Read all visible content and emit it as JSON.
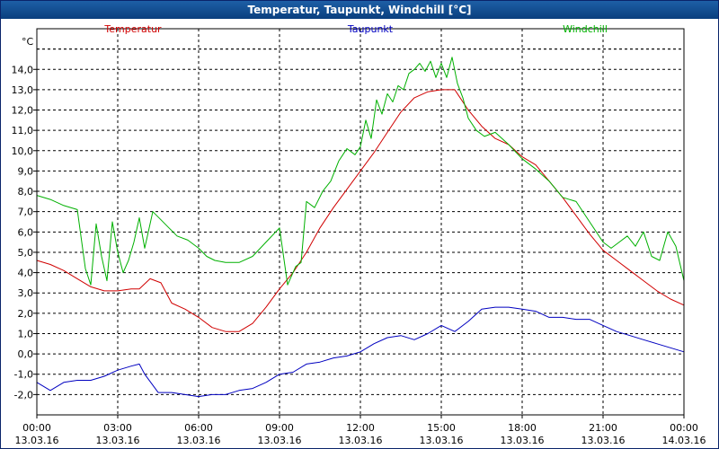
{
  "window": {
    "title": "Temperatur, Taupunkt, Windchill [°C]"
  },
  "colors": {
    "temperatur": "#d00000",
    "taupunkt": "#0000c0",
    "windchill": "#00b000",
    "grid": "#000000",
    "titlebar": "#0a4a8c"
  },
  "chart_data": {
    "type": "line",
    "title": "Temperatur, Taupunkt, Windchill [°C]",
    "ylabel": "°C",
    "xlabel": "",
    "ylim": [
      -3,
      16
    ],
    "xlim": [
      0,
      24
    ],
    "grid": true,
    "legend_position": "top",
    "yticks": [
      {
        "value": 14,
        "label": "14,0"
      },
      {
        "value": 13,
        "label": "13,0"
      },
      {
        "value": 12,
        "label": "12,0"
      },
      {
        "value": 11,
        "label": "11,0"
      },
      {
        "value": 10,
        "label": "10,0"
      },
      {
        "value": 9,
        "label": "9,0"
      },
      {
        "value": 8,
        "label": "8,0"
      },
      {
        "value": 7,
        "label": "7,0"
      },
      {
        "value": 6,
        "label": "6,0"
      },
      {
        "value": 5,
        "label": "5,0"
      },
      {
        "value": 4,
        "label": "4,0"
      },
      {
        "value": 3,
        "label": "3,0"
      },
      {
        "value": 2,
        "label": "2,0"
      },
      {
        "value": 1,
        "label": "1,0"
      },
      {
        "value": 0,
        "label": "0,0"
      },
      {
        "value": -1,
        "label": "-1,0"
      },
      {
        "value": -2,
        "label": "-2,0"
      }
    ],
    "xticks": [
      {
        "value": 0,
        "time": "00:00",
        "date": "13.03.16"
      },
      {
        "value": 3,
        "time": "03:00",
        "date": "13.03.16"
      },
      {
        "value": 6,
        "time": "06:00",
        "date": "13.03.16"
      },
      {
        "value": 9,
        "time": "09:00",
        "date": "13.03.16"
      },
      {
        "value": 12,
        "time": "12:00",
        "date": "13.03.16"
      },
      {
        "value": 15,
        "time": "15:00",
        "date": "13.03.16"
      },
      {
        "value": 18,
        "time": "18:00",
        "date": "13.03.16"
      },
      {
        "value": 21,
        "time": "21:00",
        "date": "13.03.16"
      },
      {
        "value": 24,
        "time": "00:00",
        "date": "14.03.16"
      }
    ],
    "series": [
      {
        "name": "Temperatur",
        "color": "#d00000",
        "x": [
          0,
          0.5,
          1,
          1.5,
          2,
          2.5,
          3,
          3.5,
          3.8,
          4.2,
          4.6,
          5,
          5.5,
          6,
          6.5,
          7,
          7.5,
          8,
          8.5,
          9,
          9.5,
          10,
          10.5,
          11,
          11.5,
          12,
          12.5,
          13,
          13.5,
          14,
          14.5,
          15,
          15.5,
          16,
          16.5,
          17,
          17.5,
          18,
          18.5,
          19,
          19.5,
          20,
          20.5,
          21,
          21.5,
          22,
          22.5,
          23,
          23.5,
          24
        ],
        "values": [
          4.6,
          4.4,
          4.1,
          3.7,
          3.3,
          3.1,
          3.1,
          3.2,
          3.2,
          3.7,
          3.5,
          2.5,
          2.2,
          1.8,
          1.3,
          1.1,
          1.1,
          1.5,
          2.3,
          3.2,
          4.0,
          5.0,
          6.2,
          7.2,
          8.1,
          9.0,
          9.9,
          10.9,
          11.9,
          12.6,
          12.9,
          13.0,
          13.0,
          12.0,
          11.2,
          10.6,
          10.3,
          9.7,
          9.3,
          8.5,
          7.7,
          6.8,
          5.9,
          5.1,
          4.6,
          4.1,
          3.6,
          3.1,
          2.7,
          2.4
        ]
      },
      {
        "name": "Taupunkt",
        "color": "#0000c0",
        "x": [
          0,
          0.5,
          1,
          1.5,
          2,
          2.5,
          3,
          3.5,
          3.8,
          4,
          4.5,
          5,
          5.5,
          6,
          6.5,
          7,
          7.5,
          8,
          8.5,
          9,
          9.5,
          10,
          10.5,
          11,
          11.5,
          12,
          12.5,
          13,
          13.5,
          14,
          14.5,
          15,
          15.5,
          16,
          16.5,
          17,
          17.5,
          18,
          18.5,
          19,
          19.5,
          20,
          20.5,
          21,
          21.5,
          22,
          22.5,
          23,
          23.5,
          24
        ],
        "values": [
          -1.4,
          -1.8,
          -1.4,
          -1.3,
          -1.3,
          -1.1,
          -0.8,
          -0.6,
          -0.5,
          -1.0,
          -1.9,
          -1.9,
          -2.0,
          -2.1,
          -2.0,
          -2.0,
          -1.8,
          -1.7,
          -1.4,
          -1.0,
          -0.9,
          -0.5,
          -0.4,
          -0.2,
          -0.1,
          0.1,
          0.5,
          0.8,
          0.9,
          0.7,
          1.0,
          1.4,
          1.1,
          1.6,
          2.2,
          2.3,
          2.3,
          2.2,
          2.1,
          1.8,
          1.8,
          1.7,
          1.7,
          1.4,
          1.1,
          0.9,
          0.7,
          0.5,
          0.3,
          0.1
        ]
      },
      {
        "name": "Windchill",
        "color": "#00b000",
        "x": [
          0,
          0.5,
          1,
          1.5,
          1.8,
          2,
          2.2,
          2.4,
          2.6,
          2.8,
          3,
          3.2,
          3.4,
          3.6,
          3.8,
          4,
          4.3,
          4.6,
          4.9,
          5.2,
          5.6,
          6,
          6.3,
          6.6,
          7,
          7.5,
          8,
          8.5,
          9,
          9.3,
          9.6,
          9.8,
          10,
          10.3,
          10.6,
          10.9,
          11.2,
          11.5,
          11.8,
          12,
          12.2,
          12.4,
          12.6,
          12.8,
          13,
          13.2,
          13.4,
          13.6,
          13.8,
          14,
          14.2,
          14.4,
          14.6,
          14.8,
          15,
          15.2,
          15.4,
          15.6,
          15.8,
          16,
          16.3,
          16.6,
          17,
          17.5,
          18,
          18.5,
          19,
          19.5,
          20,
          20.5,
          21,
          21.3,
          21.6,
          21.9,
          22.2,
          22.5,
          22.8,
          23.1,
          23.4,
          23.7,
          24
        ],
        "values": [
          7.8,
          7.6,
          7.3,
          7.1,
          4.2,
          3.4,
          6.4,
          4.8,
          3.6,
          6.5,
          5.0,
          4.0,
          4.6,
          5.5,
          6.7,
          5.2,
          7.0,
          6.6,
          6.2,
          5.8,
          5.6,
          5.2,
          4.8,
          4.6,
          4.5,
          4.5,
          4.8,
          5.5,
          6.2,
          3.4,
          4.3,
          4.5,
          7.5,
          7.2,
          8.0,
          8.5,
          9.5,
          10.1,
          9.8,
          10.2,
          11.5,
          10.6,
          12.5,
          11.8,
          12.8,
          12.4,
          13.2,
          13.0,
          13.8,
          14.0,
          14.3,
          13.9,
          14.4,
          13.6,
          14.3,
          13.6,
          14.6,
          13.3,
          12.6,
          11.6,
          11.0,
          10.7,
          10.9,
          10.3,
          9.6,
          9.1,
          8.5,
          7.7,
          7.5,
          6.5,
          5.5,
          5.2,
          5.5,
          5.8,
          5.3,
          6.0,
          4.8,
          4.6,
          6.0,
          5.3,
          3.6
        ]
      }
    ]
  }
}
